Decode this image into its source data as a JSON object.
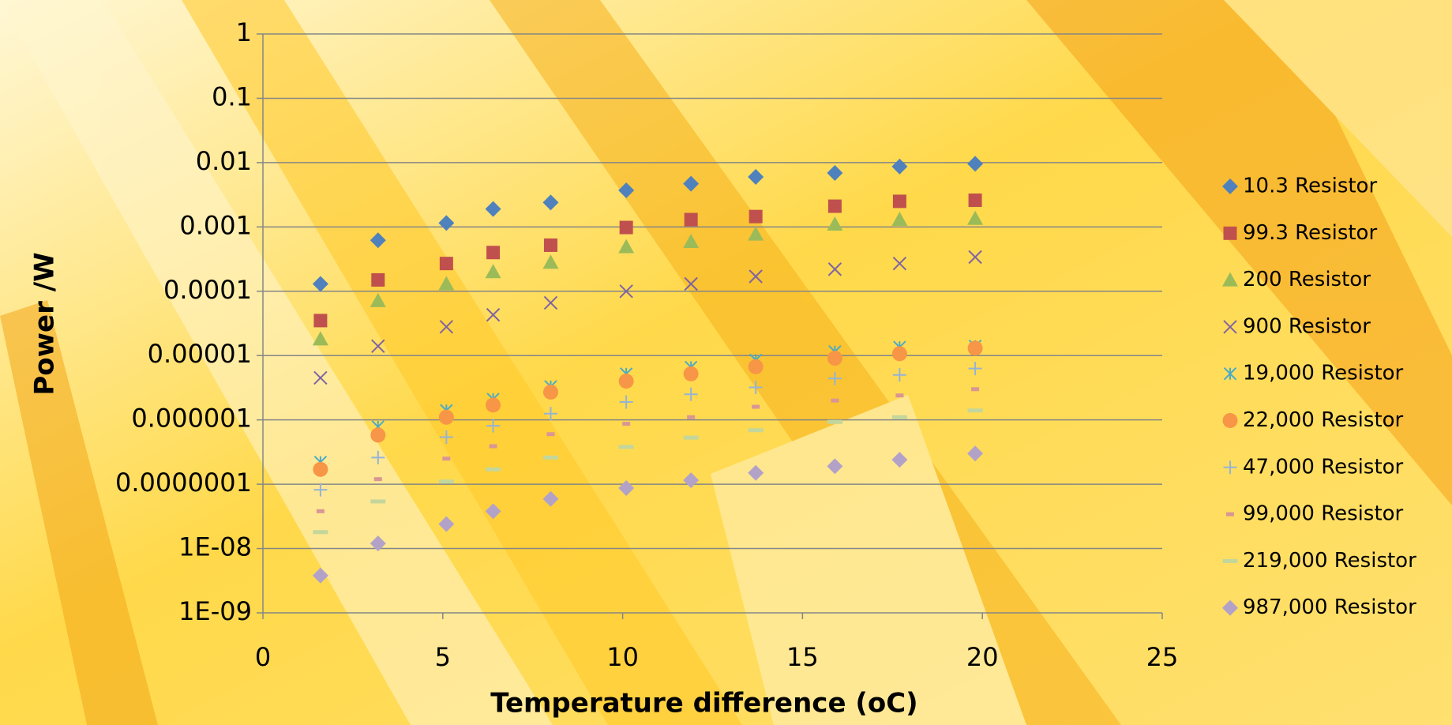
{
  "chart_data": {
    "type": "scatter",
    "x_label": "Temperature difference (oC)",
    "y_label": "Power /W",
    "log_y": true,
    "grid": true,
    "legend": "right",
    "xlim": [
      0,
      25
    ],
    "xticks": [
      0,
      5,
      10,
      15,
      20,
      25
    ],
    "ylim": [
      1e-09,
      1
    ],
    "yticks": [
      1,
      0.1,
      0.01,
      0.001,
      0.0001,
      1e-05,
      1e-06,
      {
        "value": 1e-07,
        "label": "0.0000001"
      },
      {
        "value": 1e-08,
        "label": "1E-08"
      },
      {
        "value": 1e-09,
        "label": "1E-09"
      }
    ],
    "x": [
      1.6,
      3.2,
      5.1,
      6.4,
      8,
      10.1,
      11.9,
      13.7,
      15.9,
      17.7,
      19.8
    ],
    "series": [
      {
        "name": "10.3 Resistor",
        "color": "#4f81bd",
        "marker": "diamond",
        "values": [
          0.00013,
          0.00062,
          0.00115,
          0.0019,
          0.0024,
          0.0037,
          0.0047,
          0.006,
          0.0069,
          0.0087,
          0.0096
        ]
      },
      {
        "name": "99.3 Resistor",
        "color": "#c0504d",
        "marker": "square",
        "values": [
          3.5e-05,
          0.00015,
          0.00027,
          0.0004,
          0.00052,
          0.00098,
          0.0013,
          0.00145,
          0.0021,
          0.0025,
          0.0026
        ]
      },
      {
        "name": "200 Resistor",
        "color": "#9bbb59",
        "marker": "triangle",
        "values": [
          1.8e-05,
          7.1e-05,
          0.00013,
          0.0002,
          0.00028,
          0.00049,
          0.00059,
          0.00077,
          0.0011,
          0.0013,
          0.00135
        ]
      },
      {
        "name": "900 Resistor",
        "color": "#8064a2",
        "marker": "x",
        "values": [
          4.5e-06,
          1.4e-05,
          2.8e-05,
          4.3e-05,
          6.6e-05,
          0.0001,
          0.00013,
          0.00017,
          0.00022,
          0.00027,
          0.00034
        ]
      },
      {
        "name": "19,000 Resistor",
        "color": "#4bacc6",
        "marker": "asterisk",
        "values": [
          2.2e-07,
          7.8e-07,
          1.4e-06,
          2.1e-06,
          3.3e-06,
          5.2e-06,
          6.6e-06,
          8.5e-06,
          1.15e-05,
          1.35e-05,
          1.4e-05
        ]
      },
      {
        "name": "22,000 Resistor",
        "color": "#f79646",
        "marker": "circle",
        "values": [
          1.7e-07,
          5.8e-07,
          1.1e-06,
          1.7e-06,
          2.7e-06,
          4e-06,
          5.2e-06,
          6.7e-06,
          9.1e-06,
          1.07e-05,
          1.3e-05
        ]
      },
      {
        "name": "47,000 Resistor",
        "color": "#95b3d7",
        "marker": "plus",
        "values": [
          8.2e-08,
          2.6e-07,
          5.4e-07,
          8.1e-07,
          1.25e-06,
          1.9e-06,
          2.5e-06,
          3.2e-06,
          4.4e-06,
          5e-06,
          6.3e-06
        ]
      },
      {
        "name": "99,000 Resistor",
        "color": "#d99694",
        "marker": "dash",
        "values": [
          3.8e-08,
          1.2e-07,
          2.5e-07,
          3.9e-07,
          6e-07,
          8.7e-07,
          1.1e-06,
          1.6e-06,
          2e-06,
          2.4e-06,
          3e-06
        ]
      },
      {
        "name": "219,000 Resistor",
        "color": "#c3d69b",
        "marker": "longdash",
        "values": [
          1.8e-08,
          5.4e-08,
          1.1e-07,
          1.7e-07,
          2.6e-07,
          3.8e-07,
          5.3e-07,
          6.9e-07,
          9.3e-07,
          1.1e-06,
          1.4e-06
        ]
      },
      {
        "name": "987,000 Resistor",
        "color": "#b3a2c7",
        "marker": "diamond",
        "values": [
          3.8e-09,
          1.2e-08,
          2.4e-08,
          3.8e-08,
          5.9e-08,
          8.7e-08,
          1.15e-07,
          1.5e-07,
          1.9e-07,
          2.4e-07,
          3e-07
        ]
      }
    ]
  }
}
